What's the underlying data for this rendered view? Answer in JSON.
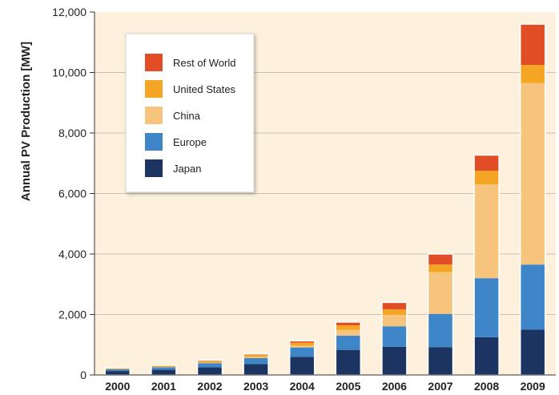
{
  "chart_data": {
    "type": "bar",
    "stacked": true,
    "ylabel": "Annual PV Production [MW]",
    "xlabel": "",
    "title": "",
    "ylim": [
      0,
      12000
    ],
    "yticks": [
      0,
      2000,
      4000,
      6000,
      8000,
      10000,
      12000
    ],
    "ytick_labels": [
      "0",
      "2,000",
      "4,000",
      "6,000",
      "8,000",
      "10,000",
      "12,000"
    ],
    "categories": [
      "2000",
      "2001",
      "2002",
      "2003",
      "2004",
      "2005",
      "2006",
      "2007",
      "2008",
      "2009"
    ],
    "grid": true,
    "legend_position": "top-left",
    "series": [
      {
        "name": "Japan",
        "color": "#1b3461",
        "values": [
          130,
          170,
          250,
          360,
          600,
          830,
          930,
          920,
          1250,
          1500
        ]
      },
      {
        "name": "Europe",
        "color": "#3f86c9",
        "values": [
          60,
          85,
          140,
          200,
          310,
          470,
          680,
          1100,
          1950,
          2150
        ]
      },
      {
        "name": "China",
        "color": "#f6c47c",
        "values": [
          5,
          10,
          20,
          40,
          60,
          190,
          380,
          1380,
          3100,
          6000
        ]
      },
      {
        "name": "United States",
        "color": "#f4a524",
        "values": [
          30,
          35,
          50,
          70,
          100,
          150,
          180,
          250,
          450,
          600
        ]
      },
      {
        "name": "Rest of World",
        "color": "#e14d24",
        "values": [
          15,
          20,
          30,
          30,
          60,
          110,
          230,
          350,
          520,
          1350
        ]
      }
    ],
    "colors": {
      "plot_background": "#fdf1de",
      "gridline": "#c8c1b6"
    }
  }
}
